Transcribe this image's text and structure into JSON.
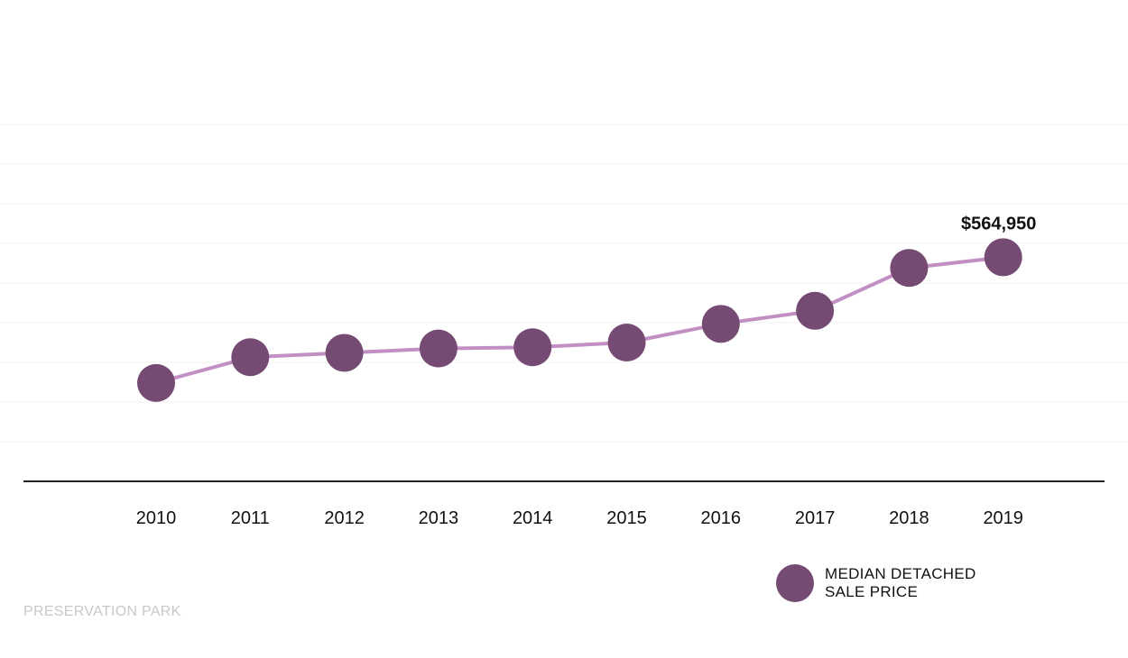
{
  "chart_data": {
    "type": "line",
    "categories": [
      "2010",
      "2011",
      "2012",
      "2013",
      "2014",
      "2015",
      "2016",
      "2017",
      "2018",
      "2019"
    ],
    "series": [
      {
        "name": "MEDIAN DETACHED SALE PRICE",
        "values": [
          248000,
          313000,
          324000,
          335000,
          338000,
          350000,
          397000,
          430000,
          538000,
          564950
        ]
      }
    ],
    "annotations": [
      {
        "category": "2019",
        "text": "$564,950"
      }
    ],
    "ylim": [
      0,
      900000
    ],
    "grid": true,
    "legend_position": "bottom-right",
    "colors": {
      "line": "#c28fc4",
      "marker": "#754b73",
      "grid": "#f2f2f2",
      "axis": "#222222"
    }
  },
  "legend": {
    "line1": "MEDIAN DETACHED",
    "line2": "SALE PRICE"
  },
  "footer": {
    "label": "PRESERVATION PARK"
  }
}
